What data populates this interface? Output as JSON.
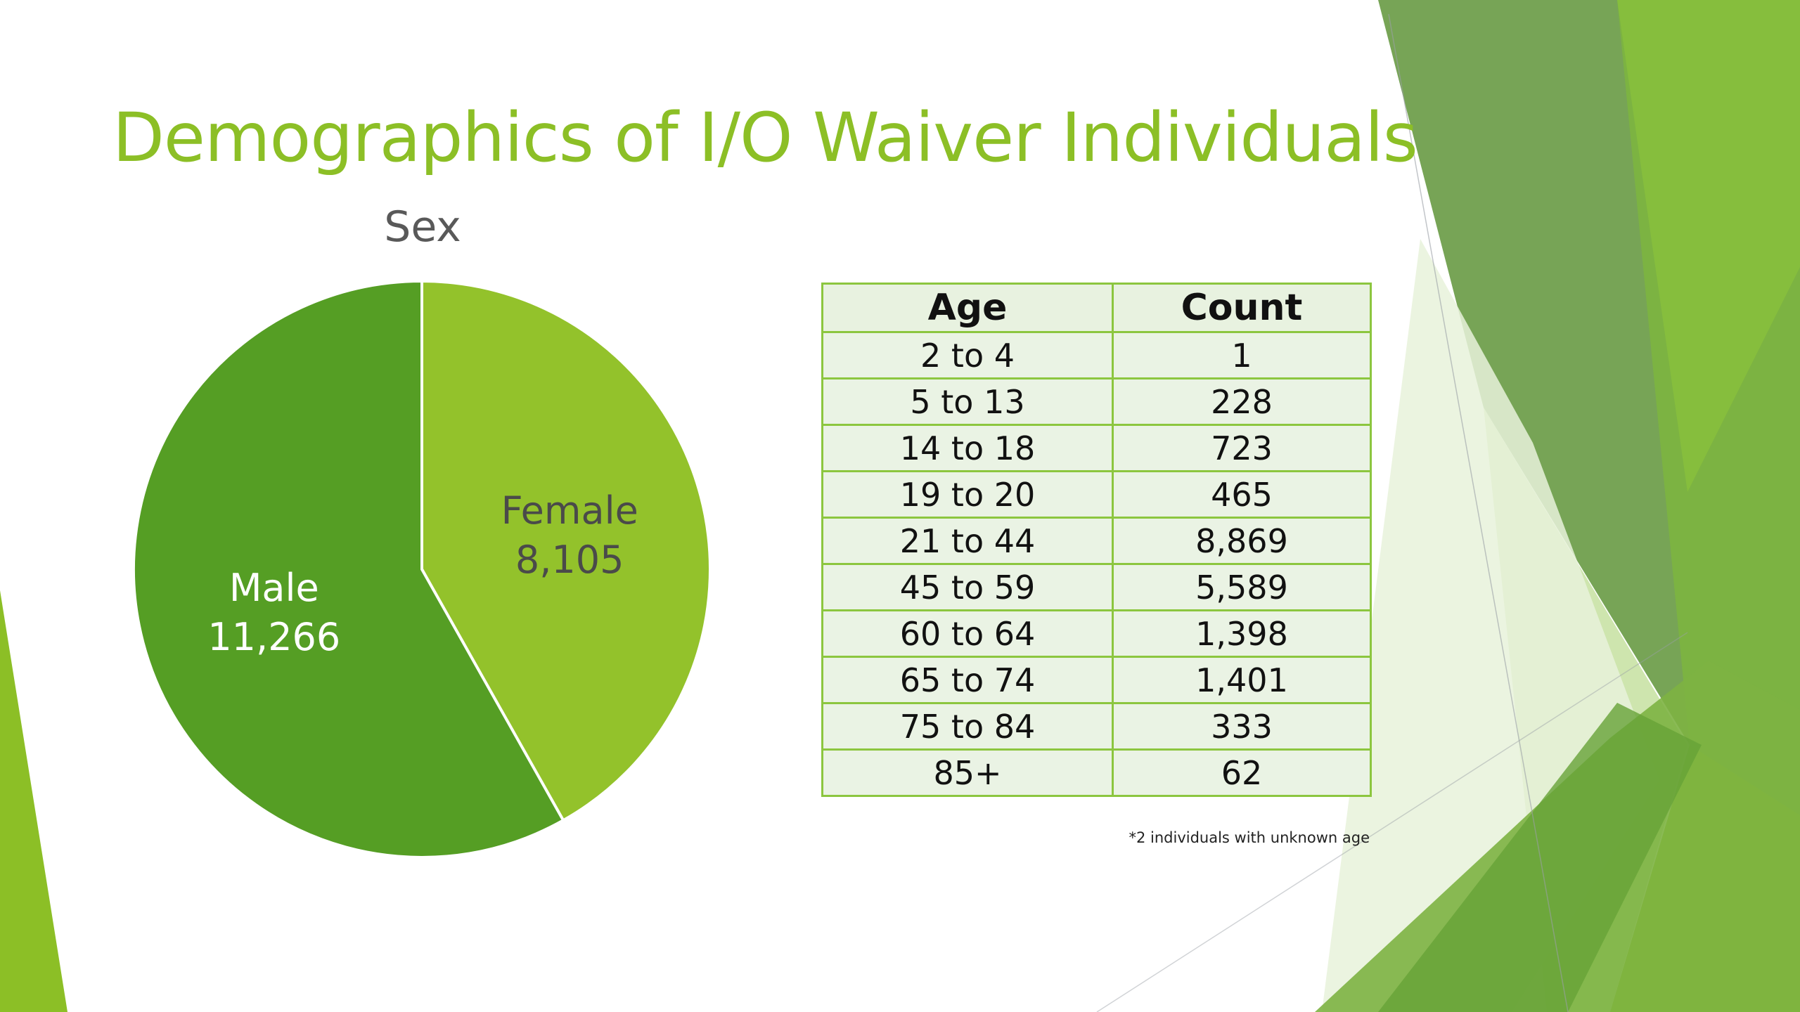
{
  "slide": {
    "title": "Demographics of I/O Waiver Individuals"
  },
  "theme": {
    "accent": "#8cbf26",
    "dark_green": "#559e24",
    "light_green": "#93c22b",
    "table_border": "#8cc63f"
  },
  "chart_data": [
    {
      "type": "pie",
      "title": "Sex",
      "slices": [
        {
          "label": "Female",
          "value": 8105,
          "value_text": "8,105",
          "color": "#93c22b"
        },
        {
          "label": "Male",
          "value": 11266,
          "value_text": "11,266",
          "color": "#559e24"
        }
      ]
    },
    {
      "type": "table",
      "columns": [
        "Age",
        "Count"
      ],
      "rows": [
        [
          "2 to 4",
          "1"
        ],
        [
          "5 to 13",
          "228"
        ],
        [
          "14 to 18",
          "723"
        ],
        [
          "19 to 20",
          "465"
        ],
        [
          "21 to 44",
          "8,869"
        ],
        [
          "45 to 59",
          "5,589"
        ],
        [
          "60 to 64",
          "1,398"
        ],
        [
          "65 to 74",
          "1,401"
        ],
        [
          "75 to 84",
          "333"
        ],
        [
          "85+",
          "62"
        ]
      ],
      "footnote": "*2 individuals with unknown age"
    }
  ]
}
